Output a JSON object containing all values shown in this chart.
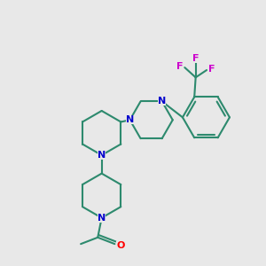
{
  "bg_color": "#e8e8e8",
  "bond_color": "#2d8a6e",
  "N_color": "#0000cc",
  "O_color": "#ff0000",
  "F_color": "#cc00cc",
  "line_width": 1.5,
  "figsize": [
    3.0,
    3.0
  ],
  "dpi": 100,
  "xlim": [
    0,
    10
  ],
  "ylim": [
    0,
    10
  ]
}
